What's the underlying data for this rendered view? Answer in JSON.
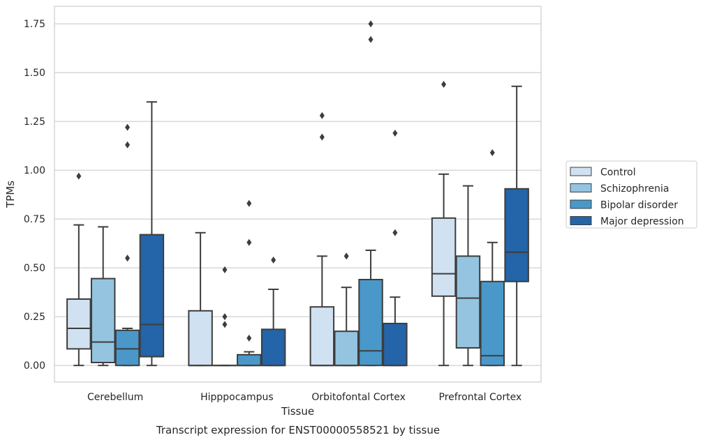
{
  "caption": "Transcript expression for ENST00000558521 by tissue",
  "chart_data": {
    "type": "box",
    "xlabel": "Tissue",
    "ylabel": "TPMs",
    "ylim": [
      -0.085,
      1.84
    ],
    "yticks": [
      0.0,
      0.25,
      0.5,
      0.75,
      1.0,
      1.25,
      1.5,
      1.75
    ],
    "ytick_labels": [
      "0.00",
      "0.25",
      "0.50",
      "0.75",
      "1.00",
      "1.25",
      "1.50",
      "1.75"
    ],
    "grid": true,
    "legend_position": "right",
    "categories": [
      "Cerebellum",
      "Hipppocampus",
      "Orbitofontal Cortex",
      "Prefrontal Cortex"
    ],
    "series": [
      {
        "name": "Control",
        "color": "#d0e1f2",
        "boxes": [
          {
            "whislo": 0.0,
            "q1": 0.085,
            "med": 0.19,
            "q3": 0.34,
            "whishi": 0.72,
            "fliers": [
              0.97
            ]
          },
          {
            "whislo": 0.0,
            "q1": 0.0,
            "med": 0.0,
            "q3": 0.28,
            "whishi": 0.68,
            "fliers": []
          },
          {
            "whislo": 0.0,
            "q1": 0.0,
            "med": 0.0,
            "q3": 0.3,
            "whishi": 0.56,
            "fliers": [
              1.17,
              1.28
            ]
          },
          {
            "whislo": 0.0,
            "q1": 0.355,
            "med": 0.47,
            "q3": 0.755,
            "whishi": 0.98,
            "fliers": [
              1.44
            ]
          }
        ]
      },
      {
        "name": "Schizophrenia",
        "color": "#94c4df",
        "boxes": [
          {
            "whislo": 0.0,
            "q1": 0.015,
            "med": 0.12,
            "q3": 0.445,
            "whishi": 0.71,
            "fliers": []
          },
          {
            "whislo": 0.0,
            "q1": 0.0,
            "med": 0.0,
            "q3": 0.0,
            "whishi": 0.0,
            "fliers": [
              0.21,
              0.25,
              0.49
            ]
          },
          {
            "whislo": 0.0,
            "q1": 0.0,
            "med": 0.0,
            "q3": 0.175,
            "whishi": 0.4,
            "fliers": [
              0.56
            ]
          },
          {
            "whislo": 0.0,
            "q1": 0.09,
            "med": 0.345,
            "q3": 0.56,
            "whishi": 0.92,
            "fliers": []
          }
        ]
      },
      {
        "name": "Bipolar disorder",
        "color": "#4a98c9",
        "boxes": [
          {
            "whislo": 0.0,
            "q1": 0.0,
            "med": 0.085,
            "q3": 0.18,
            "whishi": 0.19,
            "fliers": [
              0.55,
              1.13,
              1.22
            ]
          },
          {
            "whislo": 0.0,
            "q1": 0.0,
            "med": 0.0,
            "q3": 0.055,
            "whishi": 0.07,
            "fliers": [
              0.14,
              0.63,
              0.83
            ]
          },
          {
            "whislo": 0.0,
            "q1": 0.0,
            "med": 0.075,
            "q3": 0.44,
            "whishi": 0.59,
            "fliers": [
              1.67,
              1.75
            ]
          },
          {
            "whislo": 0.0,
            "q1": 0.0,
            "med": 0.05,
            "q3": 0.43,
            "whishi": 0.63,
            "fliers": [
              1.09
            ]
          }
        ]
      },
      {
        "name": "Major depression",
        "color": "#2464a8",
        "boxes": [
          {
            "whislo": 0.0,
            "q1": 0.045,
            "med": 0.21,
            "q3": 0.67,
            "whishi": 1.35,
            "fliers": []
          },
          {
            "whislo": 0.0,
            "q1": 0.0,
            "med": 0.0,
            "q3": 0.185,
            "whishi": 0.39,
            "fliers": [
              0.54
            ]
          },
          {
            "whislo": 0.0,
            "q1": 0.0,
            "med": 0.0,
            "q3": 0.215,
            "whishi": 0.35,
            "fliers": [
              0.68,
              1.19
            ]
          },
          {
            "whislo": 0.0,
            "q1": 0.43,
            "med": 0.58,
            "q3": 0.905,
            "whishi": 1.43,
            "fliers": []
          }
        ]
      }
    ]
  }
}
